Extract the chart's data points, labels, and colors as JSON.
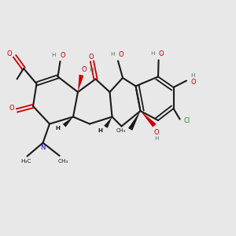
{
  "bg_color": "#e8e8e8",
  "bond_color": "#1a1a1a",
  "oxygen_color": "#cc0000",
  "nitrogen_color": "#0000cc",
  "chlorine_color": "#2d8c2d",
  "hydrogen_color": "#4a7a7a",
  "fig_w": 3.0,
  "fig_h": 3.0,
  "dpi": 100,
  "xlim": [
    0,
    10
  ],
  "ylim": [
    0,
    10
  ]
}
